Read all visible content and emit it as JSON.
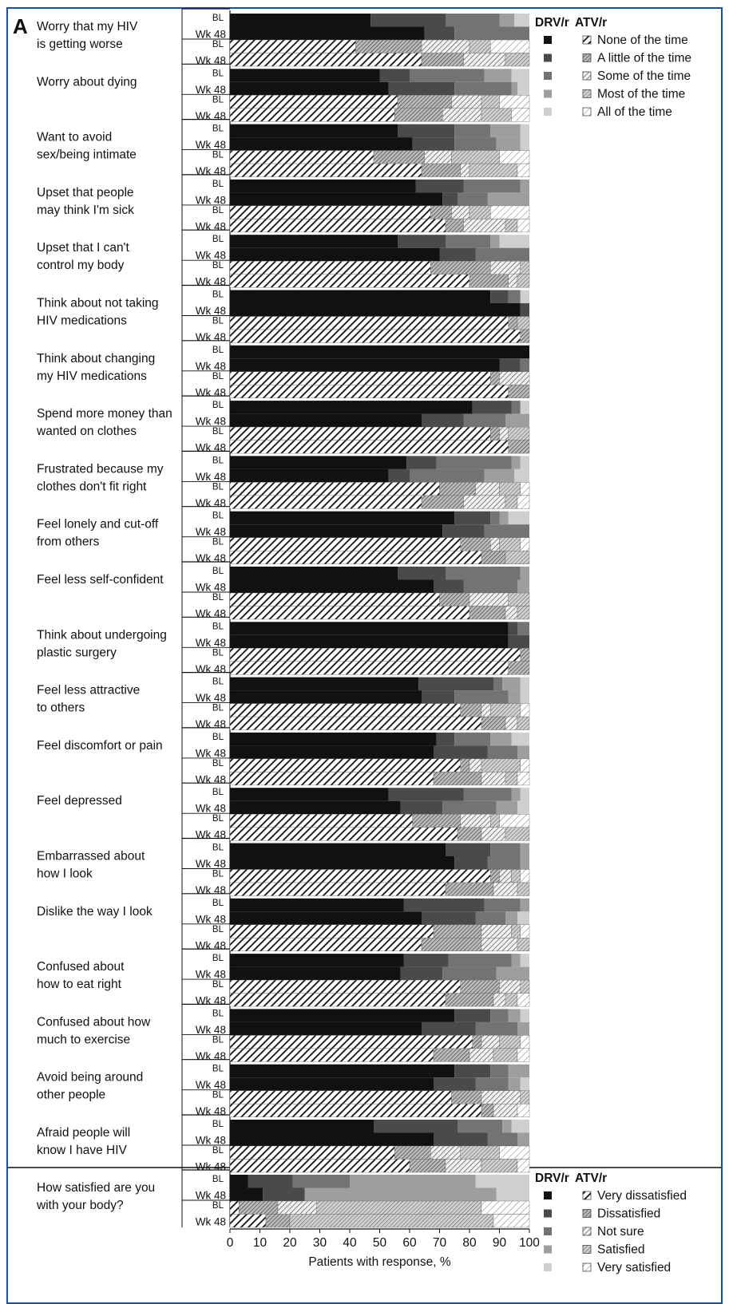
{
  "panel_letter": "A",
  "chart_data": {
    "type": "bar",
    "orientation": "horizontal",
    "stacked": true,
    "xlabel": "Patients with response, %",
    "xlim": [
      0,
      100
    ],
    "xticks": [
      "0",
      "10",
      "20",
      "30",
      "40",
      "50",
      "60",
      "70",
      "80",
      "90",
      "100"
    ],
    "timepoints": [
      "BL",
      "Wk 48"
    ],
    "arms": [
      "DRV/r",
      "ATV/r"
    ],
    "legend_frequency": {
      "header_left": "DRV/r",
      "header_right": "ATV/r",
      "placement": "top-right",
      "categories": [
        "None of the time",
        "A little of the time",
        "Some of the time",
        "Most of the time",
        "All of the time"
      ]
    },
    "legend_satisfaction": {
      "header_left": "DRV/r",
      "header_right": "ATV/r",
      "placement": "bottom-right",
      "categories": [
        "Very dissatisfied",
        "Dissatisfied",
        "Not sure",
        "Satisfied",
        "Very satisfied"
      ]
    },
    "colors": [
      "#111111",
      "#4a4a4a",
      "#737373",
      "#9e9e9e",
      "#cfcfcf"
    ],
    "items": [
      {
        "label": [
          "Worry that my HIV",
          "is getting worse"
        ],
        "drv": {
          "bl": [
            47,
            25,
            18,
            5,
            5
          ],
          "wk48": [
            65,
            10,
            25,
            0,
            0
          ]
        },
        "atv": {
          "bl": [
            42,
            22,
            16,
            7,
            13
          ],
          "wk48": [
            64,
            14,
            14,
            8,
            0
          ]
        }
      },
      {
        "label": [
          "Worry about dying"
        ],
        "drv": {
          "bl": [
            50,
            10,
            25,
            9,
            6
          ],
          "wk48": [
            53,
            22,
            19,
            2,
            4
          ]
        },
        "atv": {
          "bl": [
            56,
            18,
            10,
            6,
            10
          ],
          "wk48": [
            55,
            16,
            13,
            10,
            6
          ]
        }
      },
      {
        "label": [
          "Want to avoid",
          "sex/being intimate"
        ],
        "drv": {
          "bl": [
            56,
            19,
            12,
            10,
            3
          ],
          "wk48": [
            61,
            14,
            14,
            8,
            3
          ]
        },
        "atv": {
          "bl": [
            48,
            17,
            9,
            16,
            10
          ],
          "wk48": [
            64,
            13,
            3,
            16,
            4
          ]
        }
      },
      {
        "label": [
          "Upset that people",
          "may think I'm sick"
        ],
        "drv": {
          "bl": [
            62,
            16,
            19,
            3,
            0
          ],
          "wk48": [
            71,
            5,
            10,
            14,
            0
          ]
        },
        "atv": {
          "bl": [
            67,
            7,
            6,
            7,
            13
          ],
          "wk48": [
            72,
            6,
            14,
            4,
            4
          ]
        }
      },
      {
        "label": [
          "Upset that I can't",
          "control my body"
        ],
        "drv": {
          "bl": [
            56,
            16,
            15,
            3,
            10
          ],
          "wk48": [
            70,
            12,
            18,
            0,
            0
          ]
        },
        "atv": {
          "bl": [
            67,
            20,
            10,
            3,
            0
          ],
          "wk48": [
            80,
            13,
            3,
            4,
            0
          ]
        }
      },
      {
        "label": [
          "Think about not taking",
          "HIV medications"
        ],
        "drv": {
          "bl": [
            87,
            6,
            4,
            0,
            3
          ],
          "wk48": [
            97,
            3,
            0,
            0,
            0
          ]
        },
        "atv": {
          "bl": [
            93,
            3,
            0,
            4,
            0
          ],
          "wk48": [
            97,
            3,
            0,
            0,
            0
          ]
        }
      },
      {
        "label": [
          "Think about changing",
          "my HIV medications"
        ],
        "drv": {
          "bl": [
            100,
            0,
            0,
            0,
            0
          ],
          "wk48": [
            90,
            7,
            3,
            0,
            0
          ]
        },
        "atv": {
          "bl": [
            87,
            3,
            10,
            0,
            0
          ],
          "wk48": [
            93,
            7,
            0,
            0,
            0
          ]
        }
      },
      {
        "label": [
          "Spend more money than",
          "wanted on clothes"
        ],
        "drv": {
          "bl": [
            81,
            13,
            3,
            0,
            3
          ],
          "wk48": [
            64,
            14,
            14,
            8,
            0
          ]
        },
        "atv": {
          "bl": [
            87,
            3,
            3,
            7,
            0
          ],
          "wk48": [
            93,
            7,
            0,
            0,
            0
          ]
        }
      },
      {
        "label": [
          "Frustrated because my",
          "clothes don't fit right"
        ],
        "drv": {
          "bl": [
            59,
            10,
            25,
            3,
            3
          ],
          "wk48": [
            53,
            7,
            25,
            10,
            5
          ]
        },
        "atv": {
          "bl": [
            70,
            12,
            8,
            7,
            3
          ],
          "wk48": [
            64,
            14,
            14,
            4,
            4
          ]
        }
      },
      {
        "label": [
          "Feel lonely and cut-off",
          "from others"
        ],
        "drv": {
          "bl": [
            75,
            12,
            3,
            3,
            7
          ],
          "wk48": [
            71,
            14,
            15,
            0,
            0
          ]
        },
        "atv": {
          "bl": [
            77,
            10,
            3,
            7,
            3
          ],
          "wk48": [
            84,
            8,
            0,
            8,
            0
          ]
        }
      },
      {
        "label": [
          "Feel less self-confident"
        ],
        "drv": {
          "bl": [
            56,
            16,
            25,
            3,
            0
          ],
          "wk48": [
            68,
            10,
            18,
            4,
            0
          ]
        },
        "atv": {
          "bl": [
            70,
            10,
            13,
            7,
            0
          ],
          "wk48": [
            80,
            12,
            4,
            4,
            0
          ]
        }
      },
      {
        "label": [
          "Think about undergoing",
          "plastic surgery"
        ],
        "drv": {
          "bl": [
            93,
            3,
            4,
            0,
            0
          ],
          "wk48": [
            93,
            7,
            0,
            0,
            0
          ]
        },
        "atv": {
          "bl": [
            97,
            3,
            0,
            0,
            0
          ],
          "wk48": [
            93,
            7,
            0,
            0,
            0
          ]
        }
      },
      {
        "label": [
          "Feel less attractive",
          "to others"
        ],
        "drv": {
          "bl": [
            63,
            25,
            3,
            6,
            3
          ],
          "wk48": [
            64,
            11,
            18,
            4,
            3
          ]
        },
        "atv": {
          "bl": [
            77,
            7,
            3,
            10,
            3
          ],
          "wk48": [
            84,
            8,
            4,
            4,
            0
          ]
        }
      },
      {
        "label": [
          "Feel discomfort or pain"
        ],
        "drv": {
          "bl": [
            69,
            6,
            12,
            7,
            6
          ],
          "wk48": [
            68,
            18,
            10,
            4,
            0
          ]
        },
        "atv": {
          "bl": [
            77,
            3,
            4,
            13,
            3
          ],
          "wk48": [
            68,
            16,
            8,
            4,
            4
          ]
        }
      },
      {
        "label": [
          "Feel depressed"
        ],
        "drv": {
          "bl": [
            53,
            25,
            16,
            3,
            3
          ],
          "wk48": [
            57,
            14,
            18,
            7,
            4
          ]
        },
        "atv": {
          "bl": [
            61,
            16,
            10,
            3,
            10
          ],
          "wk48": [
            76,
            8,
            8,
            8,
            0
          ]
        }
      },
      {
        "label": [
          "Embarrassed about",
          "how I look"
        ],
        "drv": {
          "bl": [
            72,
            15,
            10,
            3,
            0
          ],
          "wk48": [
            75,
            11,
            11,
            3,
            0
          ]
        },
        "atv": {
          "bl": [
            87,
            3,
            4,
            3,
            3
          ],
          "wk48": [
            72,
            16,
            8,
            4,
            0
          ]
        }
      },
      {
        "label": [
          "Dislike the way I look"
        ],
        "drv": {
          "bl": [
            58,
            27,
            12,
            3,
            0
          ],
          "wk48": [
            64,
            18,
            10,
            4,
            4
          ]
        },
        "atv": {
          "bl": [
            68,
            16,
            10,
            3,
            3
          ],
          "wk48": [
            64,
            20,
            12,
            4,
            0
          ]
        }
      },
      {
        "label": [
          "Confused about",
          "how to eat right"
        ],
        "drv": {
          "bl": [
            58,
            15,
            21,
            3,
            3
          ],
          "wk48": [
            57,
            14,
            18,
            11,
            0
          ]
        },
        "atv": {
          "bl": [
            77,
            13,
            7,
            3,
            0
          ],
          "wk48": [
            72,
            16,
            4,
            4,
            4
          ]
        }
      },
      {
        "label": [
          "Confused about how",
          "much to exercise"
        ],
        "drv": {
          "bl": [
            75,
            12,
            6,
            4,
            3
          ],
          "wk48": [
            64,
            18,
            14,
            4,
            0
          ]
        },
        "atv": {
          "bl": [
            81,
            3,
            6,
            7,
            3
          ],
          "wk48": [
            68,
            12,
            8,
            8,
            4
          ]
        }
      },
      {
        "label": [
          "Avoid being around",
          "other people"
        ],
        "drv": {
          "bl": [
            75,
            12,
            6,
            7,
            0
          ],
          "wk48": [
            68,
            14,
            11,
            4,
            3
          ]
        },
        "atv": {
          "bl": [
            74,
            10,
            13,
            3,
            0
          ],
          "wk48": [
            84,
            4,
            8,
            0,
            4
          ]
        }
      },
      {
        "label": [
          "Afraid people will",
          "know I have HIV"
        ],
        "drv": {
          "bl": [
            48,
            28,
            15,
            3,
            6
          ],
          "wk48": [
            68,
            18,
            10,
            4,
            0
          ]
        },
        "atv": {
          "bl": [
            55,
            12,
            10,
            13,
            10
          ],
          "wk48": [
            60,
            12,
            12,
            12,
            4
          ]
        }
      }
    ],
    "satisfaction_item": {
      "label": [
        "How satisfied are you",
        "with your body?"
      ],
      "drv": {
        "bl": [
          6,
          15,
          19,
          42,
          18
        ],
        "wk48": [
          11,
          14,
          0,
          64,
          11
        ]
      },
      "atv": {
        "bl": [
          3,
          13,
          13,
          55,
          16
        ],
        "wk48": [
          12,
          8,
          0,
          68,
          12
        ]
      }
    }
  }
}
